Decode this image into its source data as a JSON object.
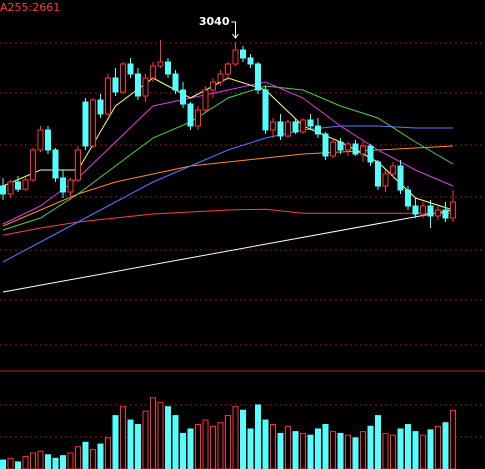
{
  "chart_data": {
    "type": "candlestick",
    "ma_label": "A255:2661",
    "ylim": [
      2220,
      3145
    ],
    "up_color": "#ff3232",
    "down_color": "#54ffff",
    "candles": [
      [
        2680,
        2700,
        2645,
        2660
      ],
      [
        2660,
        2695,
        2650,
        2690
      ],
      [
        2690,
        2705,
        2665,
        2672
      ],
      [
        2672,
        2700,
        2668,
        2695
      ],
      [
        2695,
        2775,
        2690,
        2770
      ],
      [
        2770,
        2830,
        2765,
        2820
      ],
      [
        2820,
        2830,
        2760,
        2770
      ],
      [
        2770,
        2775,
        2690,
        2700
      ],
      [
        2700,
        2720,
        2650,
        2665
      ],
      [
        2665,
        2700,
        2645,
        2695
      ],
      [
        2695,
        2780,
        2690,
        2770
      ],
      [
        2890,
        2900,
        2770,
        2780
      ],
      [
        2780,
        2900,
        2775,
        2895
      ],
      [
        2895,
        2910,
        2850,
        2860
      ],
      [
        2860,
        2960,
        2855,
        2950
      ],
      [
        2950,
        2975,
        2905,
        2915
      ],
      [
        2915,
        2990,
        2910,
        2985
      ],
      [
        2985,
        3000,
        2950,
        2960
      ],
      [
        2960,
        2975,
        2895,
        2905
      ],
      [
        2905,
        2960,
        2890,
        2950
      ],
      [
        2950,
        2990,
        2940,
        2980
      ],
      [
        2980,
        3045,
        2975,
        2990
      ],
      [
        2990,
        3000,
        2950,
        2960
      ],
      [
        2960,
        2970,
        2910,
        2920
      ],
      [
        2920,
        2940,
        2875,
        2885
      ],
      [
        2885,
        2890,
        2820,
        2830
      ],
      [
        2830,
        2880,
        2820,
        2870
      ],
      [
        2870,
        2930,
        2865,
        2920
      ],
      [
        2920,
        2950,
        2900,
        2940
      ],
      [
        2940,
        2970,
        2930,
        2960
      ],
      [
        2960,
        2990,
        2945,
        2985
      ],
      [
        2985,
        3040,
        2980,
        3020
      ],
      [
        3020,
        3030,
        2990,
        3000
      ],
      [
        3000,
        3010,
        2975,
        2985
      ],
      [
        2985,
        2990,
        2910,
        2920
      ],
      [
        2920,
        2930,
        2810,
        2820
      ],
      [
        2820,
        2850,
        2800,
        2840
      ],
      [
        2840,
        2860,
        2795,
        2805
      ],
      [
        2805,
        2845,
        2800,
        2840
      ],
      [
        2840,
        2850,
        2810,
        2815
      ],
      [
        2815,
        2850,
        2810,
        2845
      ],
      [
        2845,
        2860,
        2820,
        2830
      ],
      [
        2830,
        2850,
        2800,
        2810
      ],
      [
        2810,
        2815,
        2745,
        2755
      ],
      [
        2755,
        2800,
        2750,
        2790
      ],
      [
        2790,
        2800,
        2760,
        2770
      ],
      [
        2770,
        2790,
        2755,
        2785
      ],
      [
        2785,
        2795,
        2755,
        2760
      ],
      [
        2760,
        2790,
        2740,
        2780
      ],
      [
        2780,
        2785,
        2730,
        2740
      ],
      [
        2740,
        2745,
        2670,
        2680
      ],
      [
        2680,
        2720,
        2665,
        2710
      ],
      [
        2710,
        2740,
        2700,
        2730
      ],
      [
        2730,
        2745,
        2660,
        2670
      ],
      [
        2670,
        2680,
        2620,
        2630
      ],
      [
        2630,
        2650,
        2600,
        2610
      ],
      [
        2610,
        2640,
        2600,
        2630
      ],
      [
        2630,
        2645,
        2575,
        2605
      ],
      [
        2605,
        2630,
        2595,
        2620
      ],
      [
        2620,
        2640,
        2590,
        2600
      ],
      [
        2600,
        2670,
        2590,
        2640
      ]
    ],
    "volume_ylim": [
      0,
      100
    ],
    "volume": [
      10,
      12,
      8,
      14,
      18,
      20,
      16,
      12,
      15,
      18,
      25,
      30,
      22,
      28,
      35,
      60,
      70,
      55,
      50,
      65,
      80,
      75,
      70,
      60,
      40,
      45,
      50,
      55,
      48,
      52,
      60,
      70,
      66,
      45,
      72,
      55,
      50,
      40,
      48,
      42,
      40,
      38,
      45,
      50,
      42,
      40,
      38,
      35,
      42,
      48,
      60,
      40,
      38,
      45,
      50,
      42,
      38,
      44,
      48,
      52,
      66
    ],
    "series": [
      {
        "color": "#ffffff",
        "x": [
          0,
          60
        ],
        "values": [
          2415,
          2620
        ]
      },
      {
        "color": "#ff4040",
        "x": [
          0,
          5,
          10,
          15,
          20,
          25,
          30,
          35,
          40,
          45,
          50,
          55,
          60
        ],
        "values": [
          2557,
          2575,
          2590,
          2600,
          2610,
          2615,
          2620,
          2622,
          2612,
          2612,
          2612,
          2612,
          2612
        ]
      },
      {
        "color": "#ff8c28",
        "x": [
          0,
          5,
          10,
          15,
          20,
          25,
          30,
          35,
          40,
          45,
          50,
          55,
          60
        ],
        "values": [
          2580,
          2620,
          2660,
          2690,
          2710,
          2730,
          2740,
          2750,
          2760,
          2765,
          2770,
          2775,
          2780
        ]
      },
      {
        "color": "#5a78ff",
        "x": [
          0,
          5,
          10,
          15,
          20,
          25,
          30,
          35,
          40,
          45,
          50,
          55,
          60
        ],
        "values": [
          2490,
          2540,
          2590,
          2640,
          2690,
          2730,
          2770,
          2800,
          2820,
          2830,
          2830,
          2825,
          2825
        ]
      },
      {
        "color": "#50d050",
        "x": [
          0,
          5,
          10,
          15,
          20,
          25,
          30,
          35,
          40,
          45,
          50,
          55,
          60
        ],
        "values": [
          2570,
          2600,
          2660,
          2730,
          2800,
          2840,
          2900,
          2930,
          2920,
          2880,
          2850,
          2790,
          2735
        ]
      },
      {
        "color": "#e040e0",
        "x": [
          0,
          5,
          10,
          15,
          20,
          25,
          30,
          35,
          40,
          45,
          50,
          55,
          60
        ],
        "values": [
          2585,
          2630,
          2700,
          2790,
          2880,
          2900,
          2920,
          2940,
          2900,
          2830,
          2770,
          2720,
          2680
        ]
      },
      {
        "color": "#ffff80",
        "x": [
          0,
          5,
          10,
          15,
          20,
          25,
          30,
          35,
          40,
          45,
          50,
          55,
          60
        ],
        "values": [
          2680,
          2720,
          2720,
          2880,
          2950,
          2900,
          2950,
          2920,
          2830,
          2790,
          2740,
          2650,
          2620
        ]
      }
    ]
  }
}
